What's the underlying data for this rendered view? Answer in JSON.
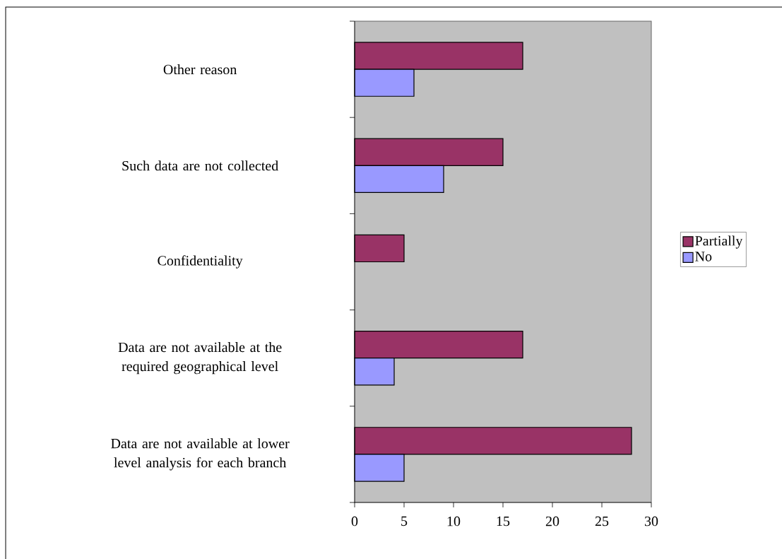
{
  "chart_data": {
    "type": "bar",
    "orientation": "horizontal",
    "categories": [
      "Other reason",
      "Such data are not collected",
      "Confidentiality",
      "Data are not available at the required geographical level",
      "Data are not available at lower level analysis for each branch"
    ],
    "series": [
      {
        "name": "Partially",
        "color": "#993366",
        "values": [
          17,
          15,
          5,
          17,
          28
        ]
      },
      {
        "name": "No",
        "color": "#9999ff",
        "values": [
          6,
          9,
          null,
          4,
          5
        ]
      }
    ],
    "xlim": [
      0,
      30
    ],
    "xticks": [
      0,
      5,
      10,
      15,
      20,
      25,
      30
    ],
    "grid": false,
    "legend": "right"
  }
}
